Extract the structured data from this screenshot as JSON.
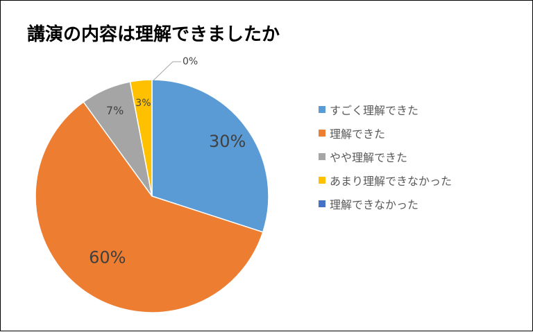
{
  "chart_data": {
    "type": "pie",
    "title": "講演の内容は理解できましたか",
    "start_angle_deg": 0,
    "direction": "clockwise",
    "legend_position": "right",
    "slices": [
      {
        "label": "すごく理解できた",
        "value": 30,
        "value_label": "30%",
        "color": "#5B9BD5"
      },
      {
        "label": "理解できた",
        "value": 60,
        "value_label": "60%",
        "color": "#ED7D31"
      },
      {
        "label": "やや理解できた",
        "value": 7,
        "value_label": "7%",
        "color": "#A5A5A5"
      },
      {
        "label": "あまり理解できなかった",
        "value": 3,
        "value_label": "3%",
        "color": "#FFC000"
      },
      {
        "label": "理解できなかった",
        "value": 0,
        "value_label": "0%",
        "color": "#4472C4"
      }
    ]
  }
}
